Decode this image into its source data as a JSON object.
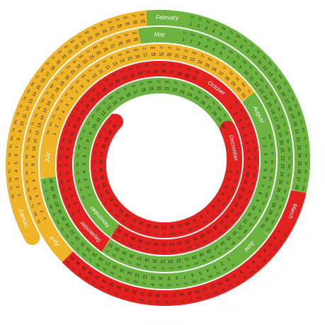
{
  "weekdays": [
    "Mo",
    "Tu",
    "We",
    "Th",
    "Fr",
    "Sa",
    "Su"
  ],
  "months": [
    {
      "name": "January",
      "color": "#f0b429",
      "days": [
        1,
        2,
        3,
        4,
        5,
        6,
        7,
        8,
        9,
        10,
        11,
        12,
        13,
        14,
        15,
        16,
        17,
        18,
        19,
        20,
        21,
        22,
        23,
        24,
        25,
        26,
        27,
        28,
        29,
        30,
        31
      ]
    },
    {
      "name": "February",
      "color": "#6cb33f",
      "days": [
        1,
        2,
        3,
        4,
        5,
        6,
        7,
        8,
        9,
        10,
        11,
        12,
        13,
        14,
        15,
        16,
        17,
        18,
        19,
        20,
        21,
        22,
        23,
        24,
        25,
        26,
        27,
        28
      ]
    },
    {
      "name": "March",
      "color": "#e3221f",
      "days": [
        1,
        2,
        3,
        4,
        5,
        6,
        7,
        8,
        9,
        10,
        11,
        12,
        13,
        14,
        15,
        16,
        17,
        18,
        19,
        20,
        21,
        22,
        23,
        24,
        25,
        26,
        27,
        28,
        29,
        30,
        31
      ]
    },
    {
      "name": "April",
      "color": "#f0b429",
      "days": [
        1,
        2,
        3,
        4,
        5,
        6,
        7,
        8,
        9,
        10,
        11,
        12,
        13,
        14,
        15,
        16,
        17,
        18,
        19,
        20,
        21,
        22,
        23,
        24,
        25,
        26,
        27,
        28,
        29,
        30
      ]
    },
    {
      "name": "May",
      "color": "#6cb33f",
      "days": [
        1,
        2,
        3,
        4,
        5,
        6,
        7,
        8,
        9,
        10,
        11,
        12,
        13,
        14,
        15,
        16,
        17,
        18,
        19,
        20,
        21,
        22,
        23,
        24,
        25,
        26,
        27,
        28,
        29,
        30,
        31
      ]
    },
    {
      "name": "June",
      "color": "#6cb33f",
      "days": [
        1,
        2,
        3,
        4,
        5,
        6,
        7,
        8,
        9,
        10,
        11,
        12,
        13,
        14,
        15,
        16,
        17,
        18,
        19,
        20,
        21,
        22,
        23,
        24,
        25,
        26,
        27,
        28,
        29,
        30
      ]
    },
    {
      "name": "July",
      "color": "#f0b429",
      "days": [
        1,
        2,
        3,
        4,
        5,
        6,
        7,
        8,
        9,
        10,
        11,
        12,
        13,
        14,
        15,
        16,
        17,
        18,
        19,
        20,
        21,
        22,
        23,
        24,
        25,
        26,
        27,
        28,
        29,
        30,
        31
      ]
    },
    {
      "name": "August",
      "color": "#6cb33f",
      "days": [
        1,
        2,
        3,
        4,
        5,
        6,
        7,
        8,
        9,
        10,
        11,
        12,
        13,
        14,
        15,
        16,
        17,
        18,
        19,
        20,
        21,
        22,
        23,
        24,
        25,
        26,
        27,
        28,
        29,
        30,
        31
      ]
    },
    {
      "name": "September",
      "color": "#e3221f",
      "days": [
        1,
        2,
        3,
        4,
        5,
        6,
        7,
        8,
        9,
        10,
        11,
        12,
        13,
        14,
        15,
        16,
        17,
        18,
        19,
        20,
        21,
        22,
        23,
        24,
        25,
        26,
        27,
        28,
        29,
        30
      ]
    },
    {
      "name": "October",
      "color": "#e3221f",
      "days": [
        1,
        2,
        3,
        4,
        5,
        6,
        7,
        8,
        9,
        10,
        11,
        12,
        13,
        14,
        15,
        16,
        17,
        18,
        19,
        20,
        21,
        22,
        23,
        24,
        25,
        26,
        27,
        28,
        29,
        30,
        31
      ]
    },
    {
      "name": "November",
      "color": "#6cb33f",
      "days": [
        1,
        2,
        3,
        4,
        5,
        6,
        7,
        8,
        9,
        10,
        11,
        12,
        13,
        14,
        15,
        16,
        17,
        18,
        19,
        20,
        21,
        22,
        23,
        24,
        25,
        26,
        27,
        28,
        29,
        30
      ]
    },
    {
      "name": "December",
      "color": "#e3221f",
      "days": [
        1,
        2,
        3,
        4,
        5,
        6,
        7,
        8,
        9,
        10,
        11,
        12,
        13,
        14,
        15,
        16,
        17,
        18,
        19,
        20,
        21,
        22,
        23,
        24,
        25,
        26,
        27,
        28,
        29,
        30,
        31
      ]
    }
  ]
}
